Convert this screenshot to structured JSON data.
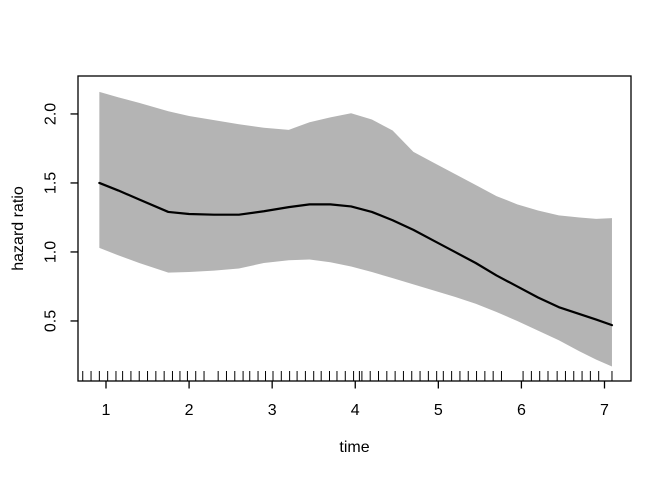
{
  "figure": {
    "background": "#ffffff",
    "band_color": "#b4b4b4",
    "line_color": "#000000",
    "axis_color": "#000000"
  },
  "chart_data": {
    "type": "area",
    "subtype": "line-with-confidence-band-and-rug",
    "title": "",
    "xlabel": "time",
    "ylabel": "hazard ratio",
    "xlim": [
      0.663,
      7.319
    ],
    "ylim": [
      0.065,
      2.275
    ],
    "x_ticks": [
      1,
      2,
      3,
      4,
      5,
      6,
      7
    ],
    "x_tick_labels": [
      "1",
      "2",
      "3",
      "4",
      "5",
      "6",
      "7"
    ],
    "y_ticks": [
      0.5,
      1.0,
      1.5,
      2.0
    ],
    "y_tick_labels": [
      "0.5",
      "1.0",
      "1.5",
      "2.0"
    ],
    "grid": false,
    "legend": "none",
    "x": [
      0.92,
      1.15,
      1.4,
      1.75,
      2.0,
      2.3,
      2.6,
      2.9,
      3.2,
      3.45,
      3.7,
      3.95,
      4.2,
      4.45,
      4.7,
      4.95,
      5.2,
      5.45,
      5.7,
      5.95,
      6.2,
      6.45,
      6.7,
      6.9,
      7.09
    ],
    "series": [
      {
        "name": "hazard ratio estimate",
        "role": "center",
        "values": [
          1.5,
          1.445,
          1.38,
          1.29,
          1.275,
          1.27,
          1.27,
          1.295,
          1.325,
          1.345,
          1.345,
          1.33,
          1.29,
          1.23,
          1.16,
          1.08,
          1.0,
          0.92,
          0.83,
          0.75,
          0.67,
          0.6,
          0.55,
          0.51,
          0.47
        ]
      },
      {
        "name": "upper confidence limit",
        "role": "upper",
        "values": [
          2.16,
          2.12,
          2.08,
          2.02,
          1.985,
          1.955,
          1.925,
          1.9,
          1.885,
          1.94,
          1.975,
          2.005,
          1.96,
          1.88,
          1.725,
          1.645,
          1.565,
          1.485,
          1.405,
          1.345,
          1.3,
          1.265,
          1.25,
          1.24,
          1.245
        ]
      },
      {
        "name": "lower confidence limit",
        "role": "lower",
        "values": [
          1.03,
          0.975,
          0.92,
          0.85,
          0.855,
          0.865,
          0.88,
          0.92,
          0.94,
          0.945,
          0.925,
          0.895,
          0.855,
          0.81,
          0.765,
          0.72,
          0.675,
          0.625,
          0.565,
          0.5,
          0.43,
          0.36,
          0.28,
          0.22,
          0.17
        ]
      }
    ],
    "rug_x": [
      0.72,
      0.82,
      0.92,
      1.02,
      1.12,
      1.2,
      1.3,
      1.4,
      1.5,
      1.6,
      1.7,
      1.8,
      1.89,
      1.98,
      2.08,
      2.18,
      2.35,
      2.45,
      2.55,
      2.65,
      2.73,
      2.83,
      2.92,
      3.01,
      3.11,
      3.21,
      3.3,
      3.4,
      3.5,
      3.59,
      3.69,
      3.78,
      3.88,
      3.98,
      4.05,
      4.08,
      4.18,
      4.28,
      4.38,
      4.48,
      4.58,
      4.68,
      4.78,
      4.88,
      4.98,
      5.06,
      5.16,
      5.26,
      5.36,
      5.46,
      5.56,
      5.66,
      5.76,
      6.02,
      6.12,
      6.22,
      6.32,
      6.43,
      6.53,
      6.63,
      6.73,
      6.83,
      6.93,
      7.09
    ]
  }
}
